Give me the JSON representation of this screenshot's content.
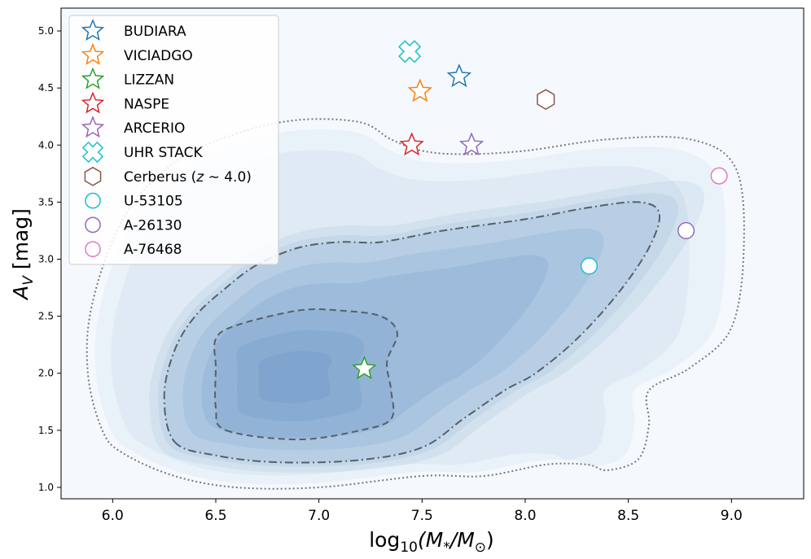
{
  "chart_data": {
    "type": "scatter",
    "xlabel_parts": {
      "pre": "log",
      "sub": "10",
      "mid": "(M",
      "sub2": "*",
      "mid2": "/M",
      "sub3": "⊙",
      "post": ")"
    },
    "ylabel_parts": {
      "pre": "A",
      "sub": "V",
      "post": " [mag]"
    },
    "xlim": [
      5.75,
      9.35
    ],
    "ylim": [
      0.9,
      5.2
    ],
    "xticks": [
      "6.0",
      "6.5",
      "7.0",
      "7.5",
      "8.0",
      "8.5",
      "9.0"
    ],
    "xtick_values": [
      6.0,
      6.5,
      7.0,
      7.5,
      8.0,
      8.5,
      9.0
    ],
    "yticks": [
      "1.0",
      "1.5",
      "2.0",
      "2.5",
      "3.0",
      "3.5",
      "4.0",
      "4.5",
      "5.0"
    ],
    "ytick_values": [
      1.0,
      1.5,
      2.0,
      2.5,
      3.0,
      3.5,
      4.0,
      4.5,
      5.0
    ],
    "legend_position": "upper-left",
    "background_density": {
      "kind": "kde-contours",
      "fill_color": "#2f6fb0",
      "peak_region": {
        "x": 6.85,
        "y": 1.95
      },
      "contours": [
        {
          "style": "dashed",
          "points": [
            [
              6.55,
              1.5
            ],
            [
              6.9,
              1.42
            ],
            [
              7.2,
              1.5
            ],
            [
              7.35,
              1.6
            ],
            [
              7.35,
              1.85
            ],
            [
              7.33,
              2.1
            ],
            [
              7.38,
              2.35
            ],
            [
              7.3,
              2.5
            ],
            [
              7.1,
              2.55
            ],
            [
              6.9,
              2.55
            ],
            [
              6.6,
              2.42
            ],
            [
              6.5,
              2.3
            ],
            [
              6.5,
              2.05
            ],
            [
              6.5,
              1.7
            ]
          ]
        },
        {
          "style": "dashdot",
          "points": [
            [
              6.3,
              1.4
            ],
            [
              6.5,
              1.28
            ],
            [
              6.8,
              1.22
            ],
            [
              7.2,
              1.24
            ],
            [
              7.5,
              1.35
            ],
            [
              7.7,
              1.6
            ],
            [
              7.9,
              1.85
            ],
            [
              8.05,
              2.0
            ],
            [
              8.25,
              2.3
            ],
            [
              8.45,
              2.7
            ],
            [
              8.6,
              3.1
            ],
            [
              8.65,
              3.4
            ],
            [
              8.55,
              3.5
            ],
            [
              8.3,
              3.45
            ],
            [
              8.0,
              3.35
            ],
            [
              7.6,
              3.25
            ],
            [
              7.3,
              3.15
            ],
            [
              7.1,
              3.15
            ],
            [
              6.9,
              3.1
            ],
            [
              6.7,
              2.95
            ],
            [
              6.55,
              2.75
            ],
            [
              6.4,
              2.5
            ],
            [
              6.3,
              2.2
            ],
            [
              6.25,
              1.8
            ]
          ]
        },
        {
          "style": "dotted",
          "points": [
            [
              5.95,
              1.5
            ],
            [
              6.05,
              1.3
            ],
            [
              6.3,
              1.1
            ],
            [
              6.6,
              1.0
            ],
            [
              7.0,
              1.0
            ],
            [
              7.5,
              1.1
            ],
            [
              7.8,
              1.1
            ],
            [
              8.1,
              1.2
            ],
            [
              8.3,
              1.2
            ],
            [
              8.4,
              1.15
            ],
            [
              8.55,
              1.25
            ],
            [
              8.6,
              1.55
            ],
            [
              8.6,
              1.85
            ],
            [
              8.8,
              2.05
            ],
            [
              9.0,
              2.4
            ],
            [
              9.06,
              3.1
            ],
            [
              9.02,
              3.8
            ],
            [
              8.8,
              4.05
            ],
            [
              8.4,
              4.05
            ],
            [
              8.0,
              3.95
            ],
            [
              7.7,
              3.92
            ],
            [
              7.5,
              3.95
            ],
            [
              7.35,
              4.05
            ],
            [
              7.2,
              4.2
            ],
            [
              6.9,
              4.22
            ],
            [
              6.6,
              4.1
            ],
            [
              6.3,
              3.85
            ],
            [
              6.05,
              3.35
            ],
            [
              5.9,
              2.6
            ],
            [
              5.88,
              2.0
            ]
          ]
        }
      ]
    },
    "series": [
      {
        "name": "BUDIARA",
        "marker": "star",
        "color": "#1f77b4",
        "filled": false,
        "x": [
          7.68
        ],
        "y": [
          4.6
        ]
      },
      {
        "name": "VICIADGO",
        "marker": "star",
        "color": "#ff7f0e",
        "filled": false,
        "x": [
          7.49
        ],
        "y": [
          4.47
        ]
      },
      {
        "name": "LIZZAN",
        "marker": "star",
        "color": "#2ca02c",
        "filled": false,
        "x": [
          7.22
        ],
        "y": [
          2.04
        ]
      },
      {
        "name": "NASPE",
        "marker": "star",
        "color": "#d62728",
        "filled": false,
        "x": [
          7.45
        ],
        "y": [
          4.0
        ]
      },
      {
        "name": "ARCERIO",
        "marker": "star",
        "color": "#9467bd",
        "filled": false,
        "x": [
          7.74
        ],
        "y": [
          4.0
        ]
      },
      {
        "name": "UHR STACK",
        "marker": "x-filled",
        "color": "#17becf",
        "filled": false,
        "x": [
          7.44
        ],
        "y": [
          4.82
        ]
      },
      {
        "name": "Cerberus (z ∼ 4.0)",
        "name_parts": {
          "pre": "Cerberus (",
          "var": "z",
          "post": " ∼ 4.0)"
        },
        "marker": "hexagon",
        "color": "#8c564b",
        "filled": false,
        "x": [
          8.1
        ],
        "y": [
          4.4
        ]
      },
      {
        "name": "U-53105",
        "marker": "circle",
        "color": "#17becf",
        "filled": false,
        "x": [
          8.31
        ],
        "y": [
          2.94
        ]
      },
      {
        "name": "A-26130",
        "marker": "circle",
        "color": "#9467bd",
        "filled": false,
        "x": [
          8.78
        ],
        "y": [
          3.25
        ]
      },
      {
        "name": "A-76468",
        "marker": "circle",
        "color": "#e377c2",
        "filled": false,
        "x": [
          8.94
        ],
        "y": [
          3.73
        ]
      }
    ]
  }
}
